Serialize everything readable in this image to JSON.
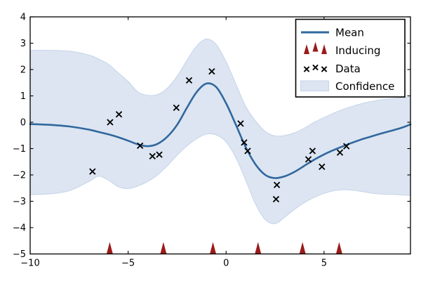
{
  "legend": {
    "position": "upper right",
    "items": [
      {
        "label": "Mean",
        "handle": "line",
        "color": "#31679e"
      },
      {
        "label": "Inducing",
        "handle": "caret-up-markers",
        "color": "#9b1b1b"
      },
      {
        "label": "Data",
        "handle": "x-markers",
        "color": "#000000"
      },
      {
        "label": "Confidence",
        "handle": "patch",
        "color": "#dce5f1",
        "edge": "#c6d4e9"
      }
    ]
  },
  "chart_data": {
    "type": "line",
    "title": "",
    "xlabel": "",
    "ylabel": "",
    "xlim": [
      -10,
      9.41
    ],
    "ylim": [
      -5,
      4
    ],
    "xticks": [
      -10,
      -5,
      0,
      5
    ],
    "yticks": [
      -5,
      -4,
      -3,
      -2,
      -1,
      0,
      1,
      2,
      3,
      4
    ],
    "grid": false,
    "x": [
      -10,
      -9,
      -8,
      -7,
      -6.5,
      -6,
      -5.5,
      -5,
      -4.5,
      -4,
      -3.5,
      -3,
      -2.5,
      -2,
      -1.5,
      -1,
      -0.5,
      0,
      0.5,
      1,
      1.5,
      2,
      2.5,
      3,
      3.5,
      4,
      4.5,
      5,
      5.5,
      6,
      6.5,
      7,
      7.5,
      8,
      8.5,
      9,
      9.41
    ],
    "series": [
      {
        "name": "Mean",
        "type": "line",
        "color": "#31679e",
        "width": 2.6,
        "y": [
          -0.07,
          -0.1,
          -0.16,
          -0.28,
          -0.37,
          -0.46,
          -0.57,
          -0.7,
          -0.84,
          -0.91,
          -0.82,
          -0.55,
          -0.1,
          0.55,
          1.15,
          1.47,
          1.33,
          0.72,
          -0.1,
          -0.95,
          -1.6,
          -2.0,
          -2.12,
          -2.05,
          -1.88,
          -1.65,
          -1.42,
          -1.22,
          -1.05,
          -0.9,
          -0.76,
          -0.63,
          -0.52,
          -0.41,
          -0.31,
          -0.2,
          -0.08
        ]
      },
      {
        "name": "Confidence",
        "type": "band",
        "fill": "#dce5f1",
        "edge": "#c6d4e9",
        "upper": [
          2.73,
          2.73,
          2.7,
          2.55,
          2.4,
          2.2,
          1.87,
          1.55,
          1.15,
          1.02,
          1.05,
          1.3,
          1.75,
          2.35,
          2.9,
          3.16,
          2.95,
          2.3,
          1.45,
          0.6,
          0.05,
          -0.35,
          -0.52,
          -0.5,
          -0.4,
          -0.22,
          0.0,
          0.18,
          0.35,
          0.5,
          0.62,
          0.72,
          0.8,
          0.86,
          0.9,
          0.93,
          0.95
        ],
        "lower": [
          -2.75,
          -2.72,
          -2.6,
          -2.25,
          -2.05,
          -2.2,
          -2.45,
          -2.52,
          -2.42,
          -2.25,
          -2.0,
          -1.65,
          -1.25,
          -0.9,
          -0.62,
          -0.45,
          -0.48,
          -0.75,
          -1.35,
          -2.2,
          -3.1,
          -3.7,
          -3.85,
          -3.6,
          -3.3,
          -3.05,
          -2.85,
          -2.7,
          -2.6,
          -2.56,
          -2.58,
          -2.64,
          -2.7,
          -2.73,
          -2.74,
          -2.76,
          -2.78
        ]
      },
      {
        "name": "Data",
        "type": "scatter",
        "marker": "x",
        "color": "#000000",
        "points": [
          [
            -6.82,
            -1.87
          ],
          [
            -5.92,
            0.0
          ],
          [
            -5.47,
            0.3
          ],
          [
            -4.39,
            -0.89
          ],
          [
            -3.76,
            -1.29
          ],
          [
            -3.41,
            -1.23
          ],
          [
            -2.54,
            0.55
          ],
          [
            -1.89,
            1.59
          ],
          [
            -0.73,
            1.93
          ],
          [
            0.74,
            -0.05
          ],
          [
            0.92,
            -0.77
          ],
          [
            1.1,
            -1.09
          ],
          [
            2.55,
            -2.92
          ],
          [
            2.59,
            -2.38
          ],
          [
            4.2,
            -1.41
          ],
          [
            4.41,
            -1.09
          ],
          [
            4.89,
            -1.69
          ],
          [
            5.81,
            -1.15
          ],
          [
            6.14,
            -0.91
          ]
        ]
      },
      {
        "name": "Inducing",
        "type": "event-markers",
        "marker": "caret-up",
        "color": "#9b1b1b",
        "x": [
          -5.94,
          -3.2,
          -0.67,
          1.63,
          3.9,
          5.77
        ],
        "baseline_y": -5
      }
    ]
  }
}
